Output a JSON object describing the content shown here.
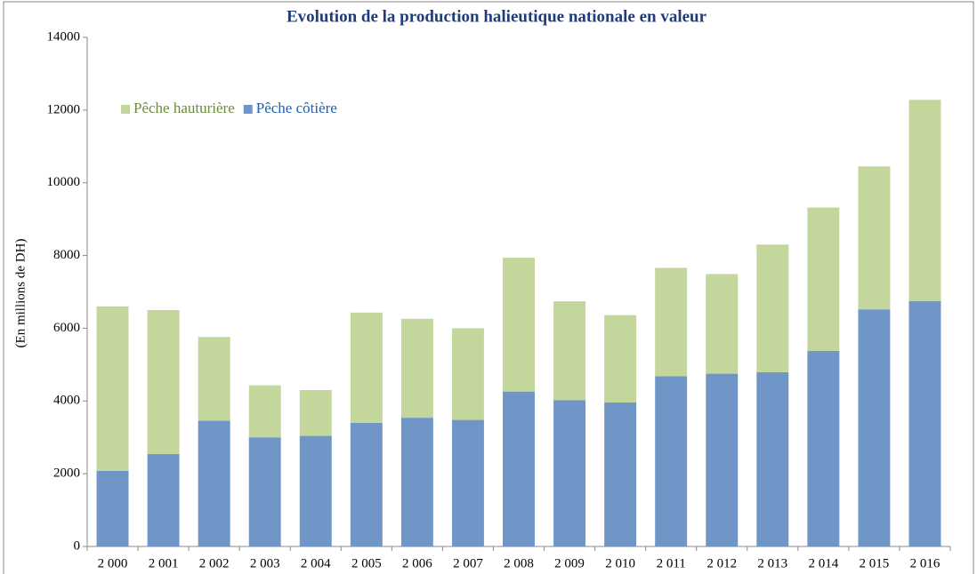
{
  "chart_data": {
    "type": "bar",
    "stacked": true,
    "title": "Evolution de la production halieutique nationale en valeur",
    "y_label": "(En millions de DH)",
    "categories": [
      "2 000",
      "2 001",
      "2 002",
      "2 003",
      "2 004",
      "2 005",
      "2 006",
      "2 007",
      "2 008",
      "2 009",
      "2 010",
      "2 011",
      "2 012",
      "2 013",
      "2 014",
      "2 015",
      "2 016"
    ],
    "series": [
      {
        "name": "Pêche côtière",
        "color": "#7096c8",
        "values": [
          2080,
          2540,
          3460,
          3000,
          3040,
          3400,
          3540,
          3480,
          4260,
          4020,
          3960,
          4680,
          4750,
          4790,
          5380,
          6520,
          6750
        ]
      },
      {
        "name": "Pêche hauturière",
        "color": "#c3d69b",
        "values": [
          4520,
          3960,
          2300,
          1430,
          1260,
          3030,
          2720,
          2520,
          3680,
          2720,
          2400,
          2980,
          2740,
          3510,
          3940,
          3930,
          5530
        ]
      }
    ],
    "ylim": [
      0,
      14000
    ],
    "yticks": [
      0,
      2000,
      4000,
      6000,
      8000,
      10000,
      12000,
      14000
    ],
    "grid": false,
    "legend": "upper left"
  }
}
